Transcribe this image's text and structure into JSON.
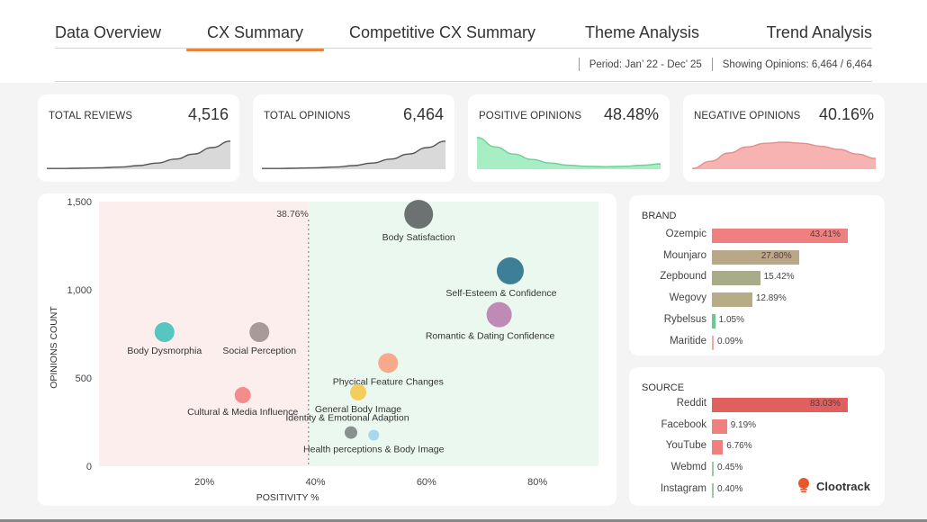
{
  "nav": {
    "tabs": [
      {
        "label": "Data Overview",
        "active": false
      },
      {
        "label": "CX Summary",
        "active": true
      },
      {
        "label": "Competitive CX Summary",
        "active": false
      },
      {
        "label": "Theme Analysis",
        "active": false
      },
      {
        "label": "Trend Analysis",
        "active": false
      }
    ],
    "period": "Period: Jan’ 22 - Dec’ 25",
    "showing": "Showing Opinions: 6,464 / 6,464"
  },
  "kpis": [
    {
      "label": "TOTAL REVIEWS",
      "value": "4,516",
      "trend": "rising",
      "color": "#d9d9d9",
      "stroke": "#555555",
      "series": [
        0.02,
        0.02,
        0.03,
        0.04,
        0.06,
        0.1,
        0.17,
        0.28,
        0.42,
        0.6,
        0.78
      ]
    },
    {
      "label": "TOTAL OPINIONS",
      "value": "6,464",
      "trend": "rising",
      "color": "#d9d9d9",
      "stroke": "#555555",
      "series": [
        0.02,
        0.02,
        0.03,
        0.04,
        0.06,
        0.1,
        0.17,
        0.28,
        0.42,
        0.6,
        0.78
      ]
    },
    {
      "label": "POSITIVE OPINIONS",
      "value": "48.48%",
      "trend": "falling",
      "color": "#a8eec4",
      "stroke": "#6ccf95",
      "series": [
        0.88,
        0.62,
        0.42,
        0.27,
        0.17,
        0.11,
        0.08,
        0.07,
        0.08,
        0.11,
        0.15
      ]
    },
    {
      "label": "NEGATIVE OPINIONS",
      "value": "40.16%",
      "trend": "hump",
      "color": "#f7b2b2",
      "stroke": "#e58e8e",
      "series": [
        0.02,
        0.22,
        0.45,
        0.62,
        0.72,
        0.75,
        0.72,
        0.64,
        0.55,
        0.42,
        0.3
      ]
    }
  ],
  "chart_data": {
    "type": "scatter",
    "title": "",
    "xlabel": "POSITIVITY %",
    "ylabel": "OPINIONS COUNT",
    "xlim": [
      1,
      91
    ],
    "ylim": [
      0,
      1500
    ],
    "xticks": [
      {
        "v": 20,
        "label": "20%"
      },
      {
        "v": 40,
        "label": "40%"
      },
      {
        "v": 60,
        "label": "60%"
      },
      {
        "v": 80,
        "label": "80%"
      }
    ],
    "yticks": [
      {
        "v": 0,
        "label": "0"
      },
      {
        "v": 500,
        "label": "500"
      },
      {
        "v": 1000,
        "label": "1,000"
      },
      {
        "v": 1500,
        "label": "1,500"
      }
    ],
    "threshold": {
      "value": 38.76,
      "label": "38.76%"
    },
    "negative_zone_color": "#fdeeee",
    "positive_zone_color": "#eaf8ef",
    "points": [
      {
        "name": "Body Satisfaction",
        "x": 58.6,
        "y": 1428,
        "size": 16,
        "color": "#6c7272",
        "label_pos": "below"
      },
      {
        "name": "Self-Esteem & Confidence",
        "x": 75.1,
        "y": 1107,
        "size": 15,
        "color": "#3e7f98",
        "label_pos": "below-left"
      },
      {
        "name": "Romantic & Dating Confidence",
        "x": 73.1,
        "y": 859,
        "size": 14,
        "color": "#c08ab6",
        "label_pos": "below-left"
      },
      {
        "name": "Body Dysmorphia",
        "x": 12.8,
        "y": 760,
        "size": 11,
        "color": "#57c6c0",
        "label_pos": "below"
      },
      {
        "name": "Social Perception",
        "x": 29.9,
        "y": 760,
        "size": 11,
        "color": "#a89a9a",
        "label_pos": "below"
      },
      {
        "name": "Phycical Feature Changes",
        "x": 53.1,
        "y": 585,
        "size": 11,
        "color": "#f7a98a",
        "label_pos": "below"
      },
      {
        "name": "General Body Image",
        "x": 47.7,
        "y": 419,
        "size": 9,
        "color": "#f4cd5c",
        "label_pos": "below"
      },
      {
        "name": "Cultural & Media Influence",
        "x": 26.9,
        "y": 403,
        "size": 9,
        "color": "#f58c8c",
        "label_pos": "below"
      },
      {
        "name": "Identity & Emotional Adaption",
        "x": 46.4,
        "y": 191,
        "size": 7,
        "color": "#8a8f8f",
        "label_pos": "above"
      },
      {
        "name": "Health perceptions & Body Image",
        "x": 50.5,
        "y": 176,
        "size": 6,
        "color": "#a7d8ee",
        "label_pos": "below"
      }
    ]
  },
  "brand": {
    "title": "BRAND",
    "items": [
      {
        "label": "Ozempic",
        "value": 43.41,
        "display": "43.41%",
        "color": "#f08080",
        "inside": true
      },
      {
        "label": "Mounjaro",
        "value": 27.8,
        "display": "27.80%",
        "color": "#b8a888",
        "inside": true
      },
      {
        "label": "Zepbound",
        "value": 15.42,
        "display": "15.42%",
        "color": "#a8ad88",
        "inside": false
      },
      {
        "label": "Wegovy",
        "value": 12.89,
        "display": "12.89%",
        "color": "#b8ac88",
        "inside": false
      },
      {
        "label": "Rybelsus",
        "value": 1.05,
        "display": "1.05%",
        "color": "#6cc790",
        "inside": false
      },
      {
        "label": "Maritide",
        "value": 0.09,
        "display": "0.09%",
        "color": "#f0a8a8",
        "inside": false
      }
    ]
  },
  "source": {
    "title": "SOURCE",
    "items": [
      {
        "label": "Reddit",
        "value": 83.03,
        "display": "83.03%",
        "color": "#e06060",
        "inside": true
      },
      {
        "label": "Facebook",
        "value": 9.19,
        "display": "9.19%",
        "color": "#f08080",
        "inside": false
      },
      {
        "label": "YouTube",
        "value": 6.76,
        "display": "6.76%",
        "color": "#f08080",
        "inside": false
      },
      {
        "label": "Webmd",
        "value": 0.45,
        "display": "0.45%",
        "color": "#9cc7a4",
        "inside": false
      },
      {
        "label": "Instagram",
        "value": 0.4,
        "display": "0.40%",
        "color": "#9cc7a4",
        "inside": false
      }
    ],
    "logo_text": "Clootrack",
    "logo_color": "#e8562a"
  }
}
